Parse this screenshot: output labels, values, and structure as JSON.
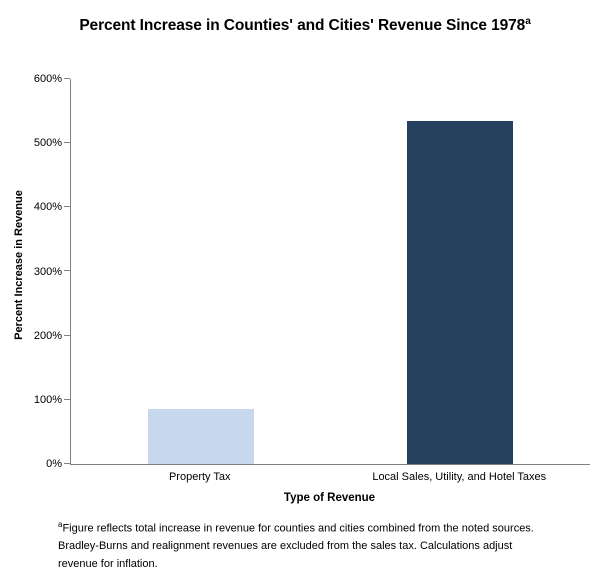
{
  "title": {
    "text": "Percent Increase in Counties' and Cities' Revenue Since 1978",
    "superscript": "a"
  },
  "chart_data": {
    "type": "bar",
    "title": "Percent Increase in Counties' and Cities' Revenue Since 1978 (superscript a)",
    "categories": [
      "Property Tax",
      "Local Sales, Utility, and Hotel Taxes"
    ],
    "values": [
      85,
      535
    ],
    "xlabel": "Type of Revenue",
    "ylabel": "Percent Increase in Revenue",
    "ylim": [
      0,
      600
    ],
    "ytick_step": 100,
    "ytick_labels": [
      "0%",
      "100%",
      "200%",
      "300%",
      "400%",
      "500%",
      "600%"
    ],
    "bar_colors": [
      "#c6d7ee",
      "#26415f"
    ],
    "axis_color": "#808080",
    "grid": false,
    "legend": null
  },
  "footnote": {
    "marker": "a",
    "lines": [
      "Figure reflects total increase in revenue for counties and cities combined from the noted sources.",
      "Bradley-Burns and realignment revenues are excluded from the sales tax. Calculations adjust",
      "revenue for inflation."
    ]
  }
}
